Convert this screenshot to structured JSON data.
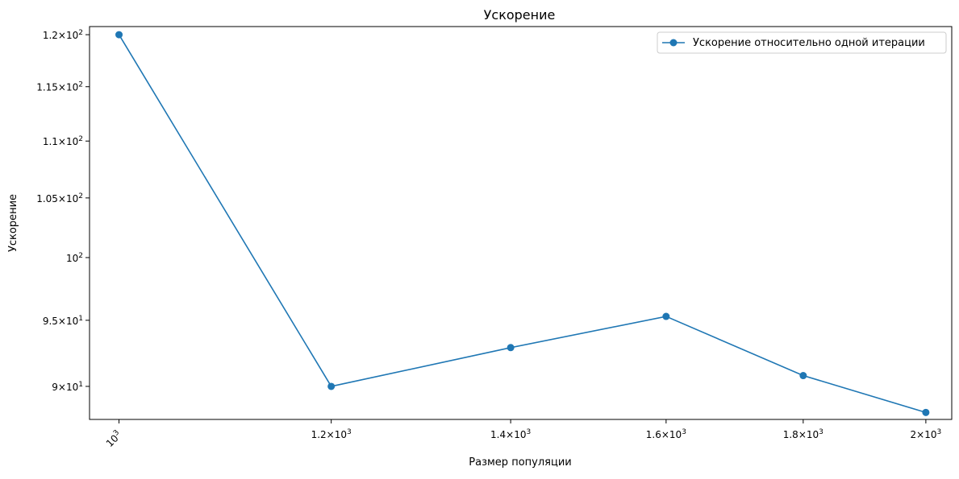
{
  "chart_data": {
    "type": "line",
    "title": "Ускорение",
    "xlabel": "Размер популяции",
    "ylabel": "Ускорение",
    "x_scale": "log",
    "y_scale": "log",
    "xlim": [
      975,
      2045
    ],
    "ylim": [
      87.6,
      120.8
    ],
    "x_ticks": [
      {
        "value": 1000,
        "mant": "",
        "exp": "3"
      },
      {
        "value": 1200,
        "mant": "1.2",
        "exp": "3"
      },
      {
        "value": 1400,
        "mant": "1.4",
        "exp": "3"
      },
      {
        "value": 1600,
        "mant": "1.6",
        "exp": "3"
      },
      {
        "value": 1800,
        "mant": "1.8",
        "exp": "3"
      },
      {
        "value": 2000,
        "mant": "2",
        "exp": "3"
      }
    ],
    "y_ticks": [
      {
        "value": 90,
        "mant": "9",
        "exp": "1"
      },
      {
        "value": 95,
        "mant": "9.5",
        "exp": "1"
      },
      {
        "value": 100,
        "mant": "",
        "exp": "2"
      },
      {
        "value": 105,
        "mant": "1.05",
        "exp": "2"
      },
      {
        "value": 110,
        "mant": "1.1",
        "exp": "2"
      },
      {
        "value": 115,
        "mant": "1.15",
        "exp": "2"
      },
      {
        "value": 120,
        "mant": "1.2",
        "exp": "2"
      }
    ],
    "grid": false,
    "legend_position": "top-right",
    "series": [
      {
        "name": "Ускорение относительно одной итерации",
        "color": "#1f77b4",
        "marker": "circle",
        "x": [
          1000,
          1200,
          1400,
          1600,
          1800,
          2000
        ],
        "y": [
          120.0,
          90.0,
          92.9,
          95.3,
          90.8,
          88.1
        ]
      }
    ]
  }
}
